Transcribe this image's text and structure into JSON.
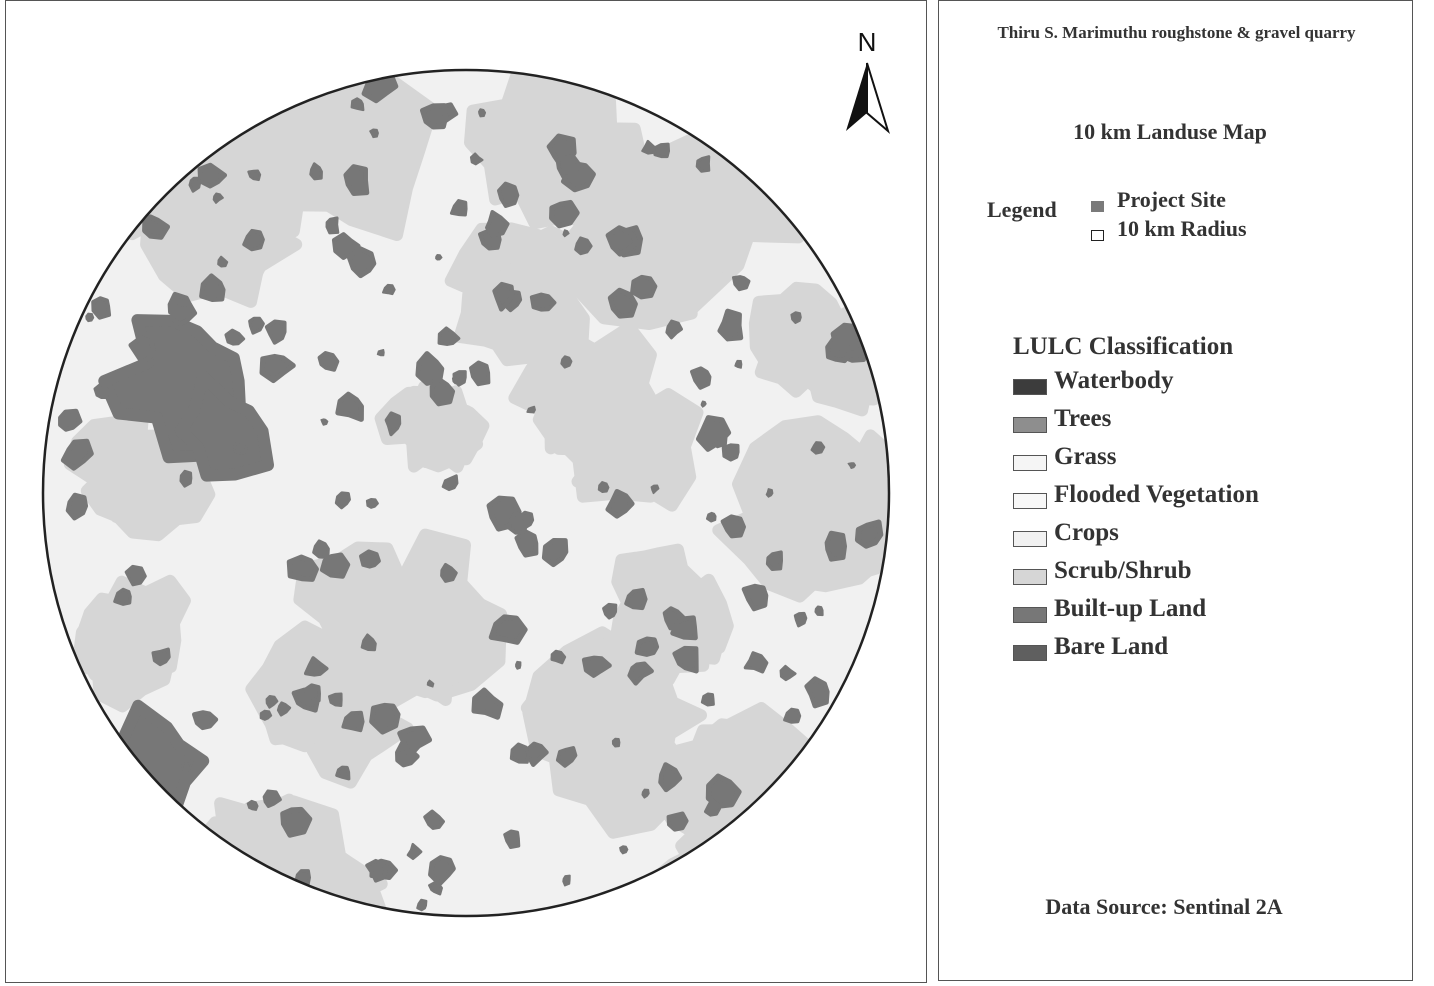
{
  "north": "N",
  "header": {
    "title": "Thiru S. Marimuthu roughstone & gravel quarry",
    "subtitle": "10 km Landuse Map"
  },
  "legend": {
    "label": "Legend",
    "items": [
      {
        "name": "Project Site",
        "color": "#7a7a7a"
      },
      {
        "name": "10 km Radius",
        "color": "#ffffff"
      }
    ]
  },
  "classification": {
    "title": "LULC Classification",
    "classes": [
      {
        "name": "Waterbody",
        "color": "#3c3c3c"
      },
      {
        "name": "Trees",
        "color": "#8e8e8e"
      },
      {
        "name": "Grass",
        "color": "#f5f5f5"
      },
      {
        "name": "Flooded Vegetation",
        "color": "#f8f8f8"
      },
      {
        "name": "Crops",
        "color": "#f1f1f1"
      },
      {
        "name": "Scrub/Shrub",
        "color": "#d6d6d6"
      },
      {
        "name": "Built-up Land",
        "color": "#777777"
      },
      {
        "name": "Bare Land",
        "color": "#5f5f5f"
      }
    ]
  },
  "footer": {
    "source": "Data Source: Sentinal 2A"
  }
}
